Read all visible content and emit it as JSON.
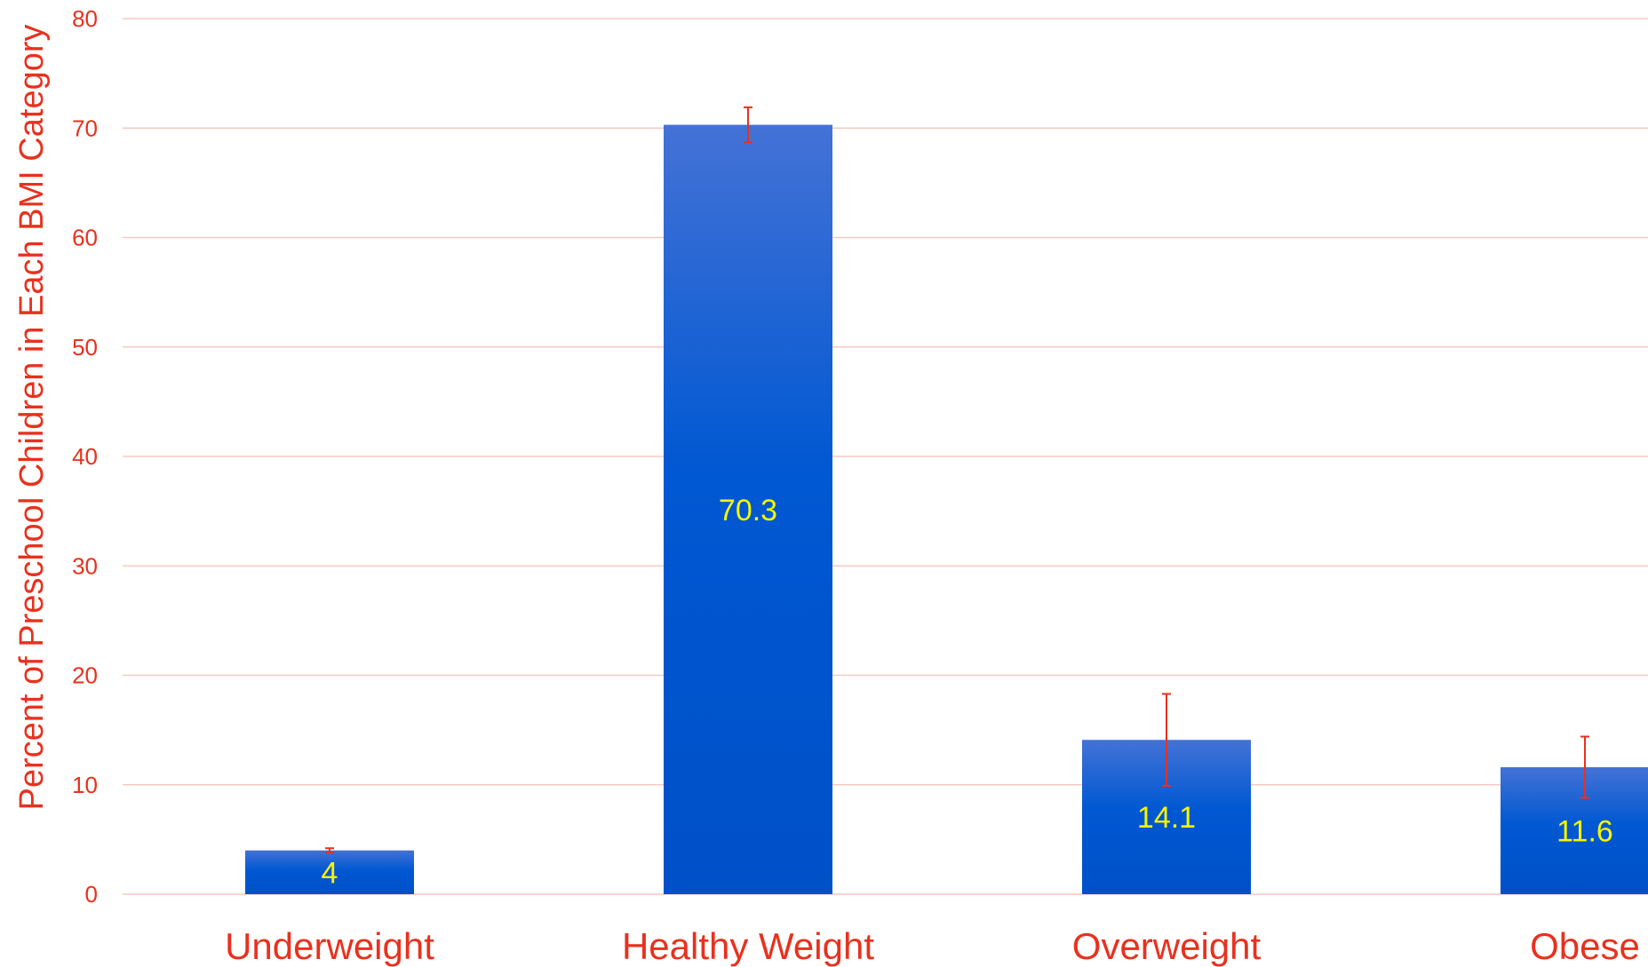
{
  "chart_data": {
    "type": "bar",
    "title": "",
    "xlabel": "",
    "ylabel": "Percent of Preschool Children in Each BMI Category",
    "ylim": [
      0,
      80
    ],
    "yticks": [
      0,
      10,
      20,
      30,
      40,
      50,
      60,
      70,
      80
    ],
    "grid": true,
    "categories": [
      "Underweight",
      "Healthy Weight",
      "Overweight",
      "Obese"
    ],
    "values": [
      4,
      70.3,
      14.1,
      11.6
    ],
    "value_labels": [
      "4",
      "70.3",
      "14.1",
      "11.6"
    ],
    "error_bars": [
      {
        "low": 3.8,
        "high": 4.2
      },
      {
        "low": 68.7,
        "high": 71.9
      },
      {
        "low": 9.9,
        "high": 18.3
      },
      {
        "low": 8.8,
        "high": 14.4
      }
    ]
  },
  "colors": {
    "bar_top": "#4472d6",
    "bar_bottom": "#0050c8",
    "gridline": "#f7c9c0",
    "axis_text": "#e8311e",
    "value_text": "#f5f500",
    "error_bar": "#e8311e"
  }
}
